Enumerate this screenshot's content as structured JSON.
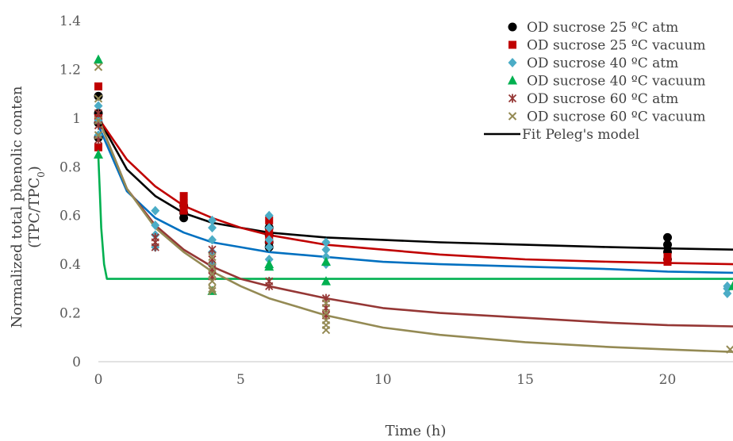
{
  "chart_data": {
    "type": "scatter",
    "xlabel": "Time (h)",
    "ylabel_line1": "Normalized total phenolic conten",
    "ylabel_line2_main": "(TPC/TPC",
    "ylabel_line2_sub": "0",
    "ylabel_line2_close": ")",
    "xlim": [
      0,
      22.3
    ],
    "ylim": [
      0,
      1.4
    ],
    "x_ticks": [
      0,
      5,
      10,
      15,
      20
    ],
    "y_ticks": [
      0,
      0.2,
      0.4,
      0.6,
      0.8,
      1,
      1.2,
      1.4
    ],
    "y_tick_labels": [
      "0",
      "0.2",
      "0.4",
      "0.6",
      "0.8",
      "1",
      "1.2",
      "1.4"
    ],
    "grid": false,
    "legend_position": "top-right",
    "series": [
      {
        "name": "OD sucrose 25 ºC atm",
        "marker": "circle",
        "color": "#000000",
        "x": [
          0,
          0,
          0,
          0,
          3,
          3,
          3,
          6,
          6,
          6,
          6,
          20,
          20,
          20,
          20
        ],
        "y": [
          1.09,
          1.02,
          0.98,
          0.92,
          0.64,
          0.61,
          0.59,
          0.55,
          0.52,
          0.49,
          0.47,
          0.51,
          0.48,
          0.45,
          0.42
        ]
      },
      {
        "name": "OD sucrose 25 ºC vacuum",
        "marker": "square",
        "color": "#c00000",
        "x": [
          0,
          0,
          0,
          3,
          3,
          3,
          6,
          6,
          6,
          20,
          20
        ],
        "y": [
          1.13,
          1.0,
          0.88,
          0.68,
          0.65,
          0.62,
          0.58,
          0.53,
          0.5,
          0.43,
          0.41
        ]
      },
      {
        "name": "OD sucrose 40 ºC atm",
        "marker": "diamond",
        "color": "#4bacc6",
        "x": [
          0,
          0,
          0,
          2,
          2,
          2,
          2,
          4,
          4,
          4,
          4,
          4,
          6,
          6,
          6,
          6,
          6,
          8,
          8,
          8,
          8,
          22.1,
          22.1,
          22.1
        ],
        "y": [
          1.05,
          0.99,
          0.93,
          0.62,
          0.56,
          0.52,
          0.47,
          0.58,
          0.55,
          0.5,
          0.45,
          0.4,
          0.6,
          0.55,
          0.5,
          0.47,
          0.42,
          0.49,
          0.46,
          0.43,
          0.4,
          0.31,
          0.3,
          0.28
        ]
      },
      {
        "name": "OD sucrose 40 ºC vacuum",
        "marker": "triangle",
        "color": "#00b050",
        "x": [
          0,
          0,
          4,
          6,
          6,
          8,
          8,
          22.3
        ],
        "y": [
          1.24,
          0.85,
          0.29,
          0.4,
          0.39,
          0.41,
          0.33,
          0.31
        ]
      },
      {
        "name": "OD sucrose 60 ºC atm",
        "marker": "star",
        "color": "#953735",
        "x": [
          0,
          0,
          0,
          2,
          2,
          2,
          4,
          4,
          4,
          4,
          6,
          6,
          8,
          8,
          8
        ],
        "y": [
          1.02,
          0.97,
          0.91,
          0.51,
          0.49,
          0.47,
          0.46,
          0.42,
          0.38,
          0.35,
          0.33,
          0.31,
          0.26,
          0.22,
          0.19
        ]
      },
      {
        "name": "OD sucrose 60 ºC vacuum",
        "marker": "x",
        "color": "#948a54",
        "x": [
          0,
          0,
          0,
          0,
          4,
          4,
          4,
          4,
          4,
          4,
          8,
          8,
          8,
          8,
          8,
          22.2
        ],
        "y": [
          1.21,
          1.08,
          0.99,
          0.93,
          0.43,
          0.39,
          0.36,
          0.33,
          0.3,
          0.29,
          0.24,
          0.2,
          0.17,
          0.15,
          0.13,
          0.05
        ]
      }
    ],
    "fit_legend": "Fit Peleg's model",
    "fits": [
      {
        "color": "#000000",
        "x": [
          0,
          1,
          2,
          3,
          4,
          5,
          6,
          8,
          10,
          12,
          15,
          18,
          20,
          22.3
        ],
        "y": [
          1.0,
          0.79,
          0.68,
          0.61,
          0.57,
          0.55,
          0.53,
          0.51,
          0.5,
          0.49,
          0.48,
          0.47,
          0.465,
          0.46
        ]
      },
      {
        "color": "#c00000",
        "x": [
          0,
          1,
          2,
          3,
          4,
          5,
          6,
          8,
          10,
          12,
          15,
          18,
          20,
          22.3
        ],
        "y": [
          1.0,
          0.83,
          0.72,
          0.64,
          0.59,
          0.55,
          0.52,
          0.48,
          0.46,
          0.44,
          0.42,
          0.41,
          0.405,
          0.4
        ]
      },
      {
        "color": "#0070c0",
        "x": [
          0,
          1,
          2,
          3,
          4,
          5,
          6,
          8,
          10,
          12,
          15,
          18,
          20,
          22.3
        ],
        "y": [
          0.97,
          0.7,
          0.59,
          0.53,
          0.49,
          0.47,
          0.45,
          0.43,
          0.41,
          0.4,
          0.39,
          0.38,
          0.37,
          0.365
        ]
      },
      {
        "color": "#00b050",
        "x": [
          0,
          0.001,
          0.05,
          0.1,
          0.2,
          0.3,
          5,
          10,
          15,
          20,
          22.3
        ],
        "y": [
          0.84,
          0.84,
          0.7,
          0.55,
          0.4,
          0.34,
          0.34,
          0.34,
          0.34,
          0.34,
          0.34
        ]
      },
      {
        "color": "#953735",
        "x": [
          0,
          1,
          2,
          3,
          4,
          5,
          6,
          8,
          10,
          12,
          15,
          18,
          20,
          22.3
        ],
        "y": [
          1.0,
          0.71,
          0.56,
          0.46,
          0.39,
          0.34,
          0.31,
          0.26,
          0.22,
          0.2,
          0.18,
          0.16,
          0.15,
          0.145
        ]
      },
      {
        "color": "#948a54",
        "x": [
          0,
          1,
          2,
          3,
          4,
          5,
          6,
          8,
          10,
          12,
          15,
          18,
          20,
          22.3
        ],
        "y": [
          1.0,
          0.71,
          0.55,
          0.45,
          0.37,
          0.31,
          0.26,
          0.19,
          0.14,
          0.11,
          0.08,
          0.06,
          0.05,
          0.04
        ]
      }
    ]
  }
}
